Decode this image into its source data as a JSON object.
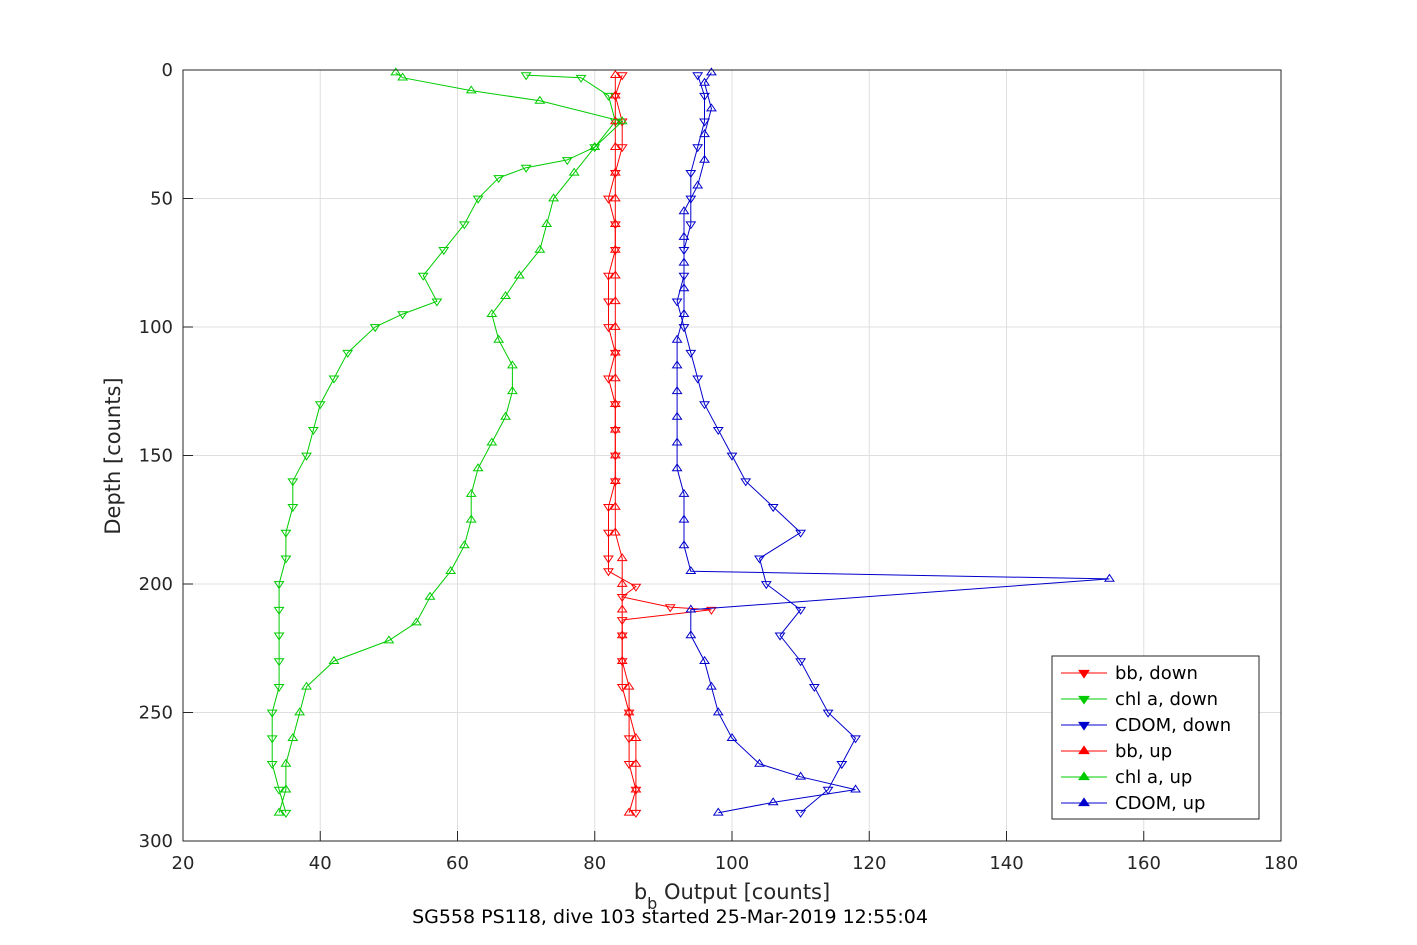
{
  "chart_data": {
    "type": "line",
    "title": "",
    "xlabel_main": "b",
    "xlabel_sub": "b",
    "xlabel_rest": " Output [counts]",
    "ylabel": "Depth [counts]",
    "subtitle": "SG558 PS118, dive 103 started 25-Mar-2019 12:55:04",
    "xlim": [
      20,
      180
    ],
    "ylim": [
      0,
      300
    ],
    "y_reversed": true,
    "grid": true,
    "xticks": [
      "20",
      "40",
      "60",
      "80",
      "100",
      "120",
      "140",
      "160",
      "180"
    ],
    "yticks": [
      "0",
      "50",
      "100",
      "150",
      "200",
      "250",
      "300"
    ],
    "legend_position": "bottom-right",
    "series": [
      {
        "name": "bb, down",
        "color": "#ff0000",
        "marker": "triangle-down",
        "points": [
          [
            84,
            2
          ],
          [
            83,
            10
          ],
          [
            84,
            20
          ],
          [
            84,
            30
          ],
          [
            83,
            40
          ],
          [
            82,
            50
          ],
          [
            83,
            60
          ],
          [
            83,
            70
          ],
          [
            82,
            80
          ],
          [
            82,
            90
          ],
          [
            82,
            100
          ],
          [
            83,
            110
          ],
          [
            82,
            120
          ],
          [
            83,
            130
          ],
          [
            83,
            140
          ],
          [
            83,
            150
          ],
          [
            83,
            160
          ],
          [
            82,
            170
          ],
          [
            82,
            180
          ],
          [
            82,
            190
          ],
          [
            82,
            195
          ],
          [
            86,
            201
          ],
          [
            84,
            205
          ],
          [
            91,
            209
          ],
          [
            97,
            210
          ],
          [
            84,
            214
          ],
          [
            84,
            220
          ],
          [
            84,
            230
          ],
          [
            84,
            240
          ],
          [
            85,
            250
          ],
          [
            85,
            260
          ],
          [
            85,
            270
          ],
          [
            86,
            280
          ],
          [
            86,
            289
          ]
        ]
      },
      {
        "name": "chl a, down",
        "color": "#00cc00",
        "marker": "triangle-down",
        "points": [
          [
            70,
            2
          ],
          [
            78,
            3
          ],
          [
            82,
            10
          ],
          [
            83,
            20
          ],
          [
            80,
            30
          ],
          [
            76,
            35
          ],
          [
            70,
            38
          ],
          [
            66,
            42
          ],
          [
            63,
            50
          ],
          [
            61,
            60
          ],
          [
            58,
            70
          ],
          [
            55,
            80
          ],
          [
            57,
            90
          ],
          [
            52,
            95
          ],
          [
            48,
            100
          ],
          [
            44,
            110
          ],
          [
            42,
            120
          ],
          [
            40,
            130
          ],
          [
            39,
            140
          ],
          [
            38,
            150
          ],
          [
            36,
            160
          ],
          [
            36,
            170
          ],
          [
            35,
            180
          ],
          [
            35,
            190
          ],
          [
            34,
            200
          ],
          [
            34,
            210
          ],
          [
            34,
            220
          ],
          [
            34,
            230
          ],
          [
            34,
            240
          ],
          [
            33,
            250
          ],
          [
            33,
            260
          ],
          [
            33,
            270
          ],
          [
            34,
            280
          ],
          [
            35,
            289
          ]
        ]
      },
      {
        "name": "CDOM, down",
        "color": "#0000cc",
        "marker": "triangle-down",
        "points": [
          [
            95,
            2
          ],
          [
            96,
            10
          ],
          [
            96,
            20
          ],
          [
            95,
            30
          ],
          [
            94,
            40
          ],
          [
            94,
            50
          ],
          [
            94,
            60
          ],
          [
            93,
            70
          ],
          [
            93,
            80
          ],
          [
            92,
            90
          ],
          [
            93,
            100
          ],
          [
            94,
            110
          ],
          [
            95,
            120
          ],
          [
            96,
            130
          ],
          [
            98,
            140
          ],
          [
            100,
            150
          ],
          [
            102,
            160
          ],
          [
            106,
            170
          ],
          [
            110,
            180
          ],
          [
            104,
            190
          ],
          [
            105,
            200
          ],
          [
            110,
            210
          ],
          [
            107,
            220
          ],
          [
            110,
            230
          ],
          [
            112,
            240
          ],
          [
            114,
            250
          ],
          [
            118,
            260
          ],
          [
            116,
            270
          ],
          [
            114,
            280
          ],
          [
            110,
            289
          ]
        ]
      },
      {
        "name": "bb, up",
        "color": "#ff0000",
        "marker": "triangle-up",
        "points": [
          [
            85,
            289
          ],
          [
            86,
            280
          ],
          [
            86,
            270
          ],
          [
            86,
            260
          ],
          [
            85,
            250
          ],
          [
            85,
            240
          ],
          [
            84,
            230
          ],
          [
            84,
            220
          ],
          [
            84,
            210
          ],
          [
            84,
            200
          ],
          [
            84,
            190
          ],
          [
            83,
            180
          ],
          [
            83,
            170
          ],
          [
            83,
            160
          ],
          [
            83,
            150
          ],
          [
            83,
            140
          ],
          [
            83,
            130
          ],
          [
            83,
            120
          ],
          [
            83,
            110
          ],
          [
            83,
            100
          ],
          [
            83,
            90
          ],
          [
            83,
            80
          ],
          [
            83,
            70
          ],
          [
            83,
            60
          ],
          [
            83,
            50
          ],
          [
            83,
            40
          ],
          [
            83,
            30
          ],
          [
            83,
            20
          ],
          [
            83,
            10
          ],
          [
            83,
            2
          ]
        ]
      },
      {
        "name": "chl a, up",
        "color": "#00cc00",
        "marker": "triangle-up",
        "points": [
          [
            34,
            289
          ],
          [
            35,
            280
          ],
          [
            35,
            270
          ],
          [
            36,
            260
          ],
          [
            37,
            250
          ],
          [
            38,
            240
          ],
          [
            42,
            230
          ],
          [
            50,
            222
          ],
          [
            54,
            215
          ],
          [
            56,
            205
          ],
          [
            59,
            195
          ],
          [
            61,
            185
          ],
          [
            62,
            175
          ],
          [
            62,
            165
          ],
          [
            63,
            155
          ],
          [
            65,
            145
          ],
          [
            67,
            135
          ],
          [
            68,
            125
          ],
          [
            68,
            115
          ],
          [
            66,
            105
          ],
          [
            65,
            95
          ],
          [
            67,
            88
          ],
          [
            69,
            80
          ],
          [
            72,
            70
          ],
          [
            73,
            60
          ],
          [
            74,
            50
          ],
          [
            77,
            40
          ],
          [
            80,
            30
          ],
          [
            84,
            20
          ],
          [
            72,
            12
          ],
          [
            62,
            8
          ],
          [
            52,
            3
          ],
          [
            51,
            1
          ]
        ]
      },
      {
        "name": "CDOM, up",
        "color": "#0000cc",
        "marker": "triangle-up",
        "points": [
          [
            98,
            289
          ],
          [
            106,
            285
          ],
          [
            118,
            280
          ],
          [
            110,
            275
          ],
          [
            104,
            270
          ],
          [
            100,
            260
          ],
          [
            98,
            250
          ],
          [
            97,
            240
          ],
          [
            96,
            230
          ],
          [
            94,
            220
          ],
          [
            94,
            210
          ],
          [
            155,
            198
          ],
          [
            94,
            195
          ],
          [
            93,
            185
          ],
          [
            93,
            175
          ],
          [
            93,
            165
          ],
          [
            92,
            155
          ],
          [
            92,
            145
          ],
          [
            92,
            135
          ],
          [
            92,
            125
          ],
          [
            92,
            115
          ],
          [
            92,
            105
          ],
          [
            93,
            95
          ],
          [
            93,
            85
          ],
          [
            93,
            75
          ],
          [
            93,
            65
          ],
          [
            93,
            55
          ],
          [
            95,
            45
          ],
          [
            96,
            35
          ],
          [
            96,
            25
          ],
          [
            97,
            15
          ],
          [
            96,
            5
          ],
          [
            97,
            1
          ]
        ]
      }
    ]
  }
}
